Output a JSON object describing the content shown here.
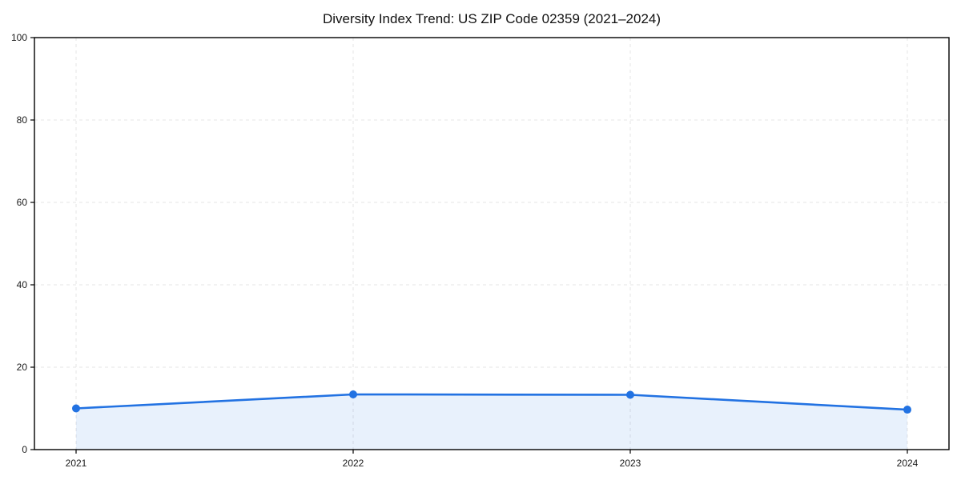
{
  "chart_data": {
    "type": "area",
    "title": "Diversity Index Trend: US ZIP Code 02359 (2021–2024)",
    "x": [
      "2021",
      "2022",
      "2023",
      "2024"
    ],
    "series": [
      {
        "name": "Diversity Index",
        "values": [
          10.0,
          13.4,
          13.3,
          9.7
        ]
      }
    ],
    "xlabel": "",
    "ylabel": "",
    "ylim": [
      0,
      100
    ],
    "yticks": [
      0,
      20,
      40,
      60,
      80,
      100
    ],
    "grid": "dashed-both-axes",
    "legend": "none",
    "line_color": "#2272e2",
    "marker_color": "#2272e2",
    "fill_color": "#2272e2",
    "fill_opacity": 0.1,
    "gridline_color": "#e4e4e4",
    "frame_color": "#000000"
  }
}
